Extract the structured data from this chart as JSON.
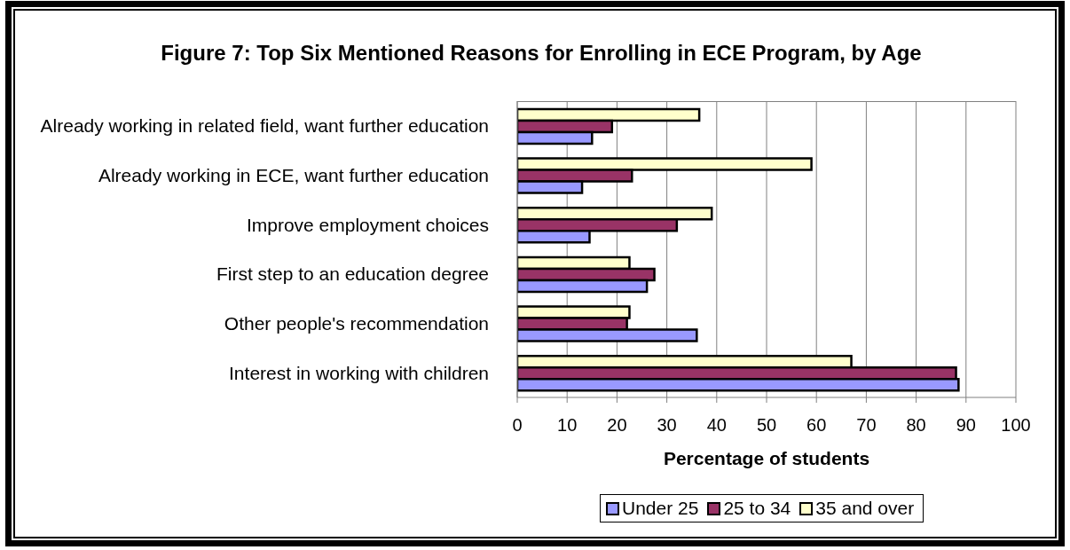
{
  "chart_data": {
    "type": "bar",
    "orientation": "horizontal",
    "title": "Figure 7: Top Six Mentioned Reasons for Enrolling in ECE Program, by Age",
    "xlabel": "Percentage of students",
    "categories": [
      "Already working in related field, want further education",
      "Already working in ECE, want further education",
      "Improve employment choices",
      "First step to an education degree",
      "Other people's recommendation",
      "Interest in working with children"
    ],
    "series": [
      {
        "name": "Under 25",
        "color": "#9999ff",
        "values": [
          15,
          13,
          14.5,
          26,
          36,
          88.5
        ]
      },
      {
        "name": "25 to 34",
        "color": "#993366",
        "values": [
          19,
          23,
          32,
          27.5,
          22,
          88
        ]
      },
      {
        "name": "35 and over",
        "color": "#ffffcc",
        "values": [
          36.5,
          59,
          39,
          22.5,
          22.5,
          67
        ]
      }
    ],
    "xlim": [
      0,
      100
    ],
    "xticks": [
      0,
      10,
      20,
      30,
      40,
      50,
      60,
      70,
      80,
      90,
      100
    ],
    "grid": "x",
    "legend": "bottom"
  }
}
